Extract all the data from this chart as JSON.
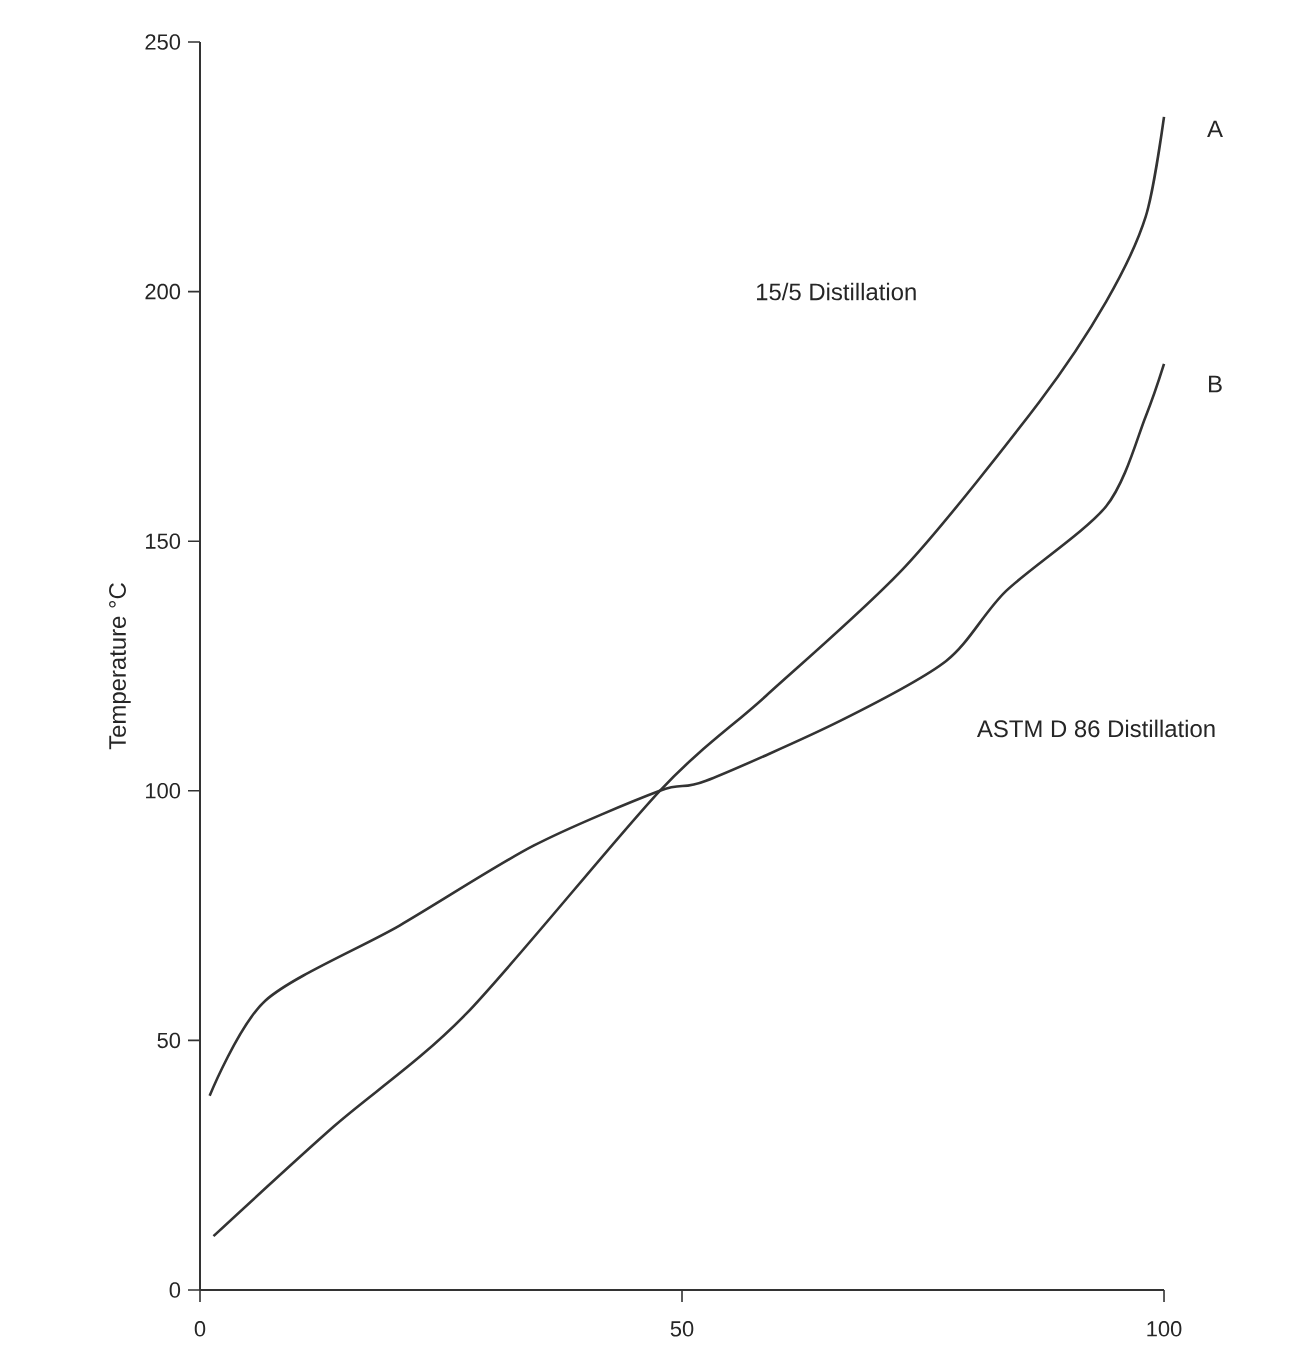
{
  "chart_data": {
    "type": "line",
    "ylabel": "Temperature °C",
    "xlim": [
      0,
      100
    ],
    "ylim": [
      0,
      250
    ],
    "xticks": [
      0,
      50,
      100
    ],
    "yticks": [
      0,
      50,
      100,
      150,
      200,
      250
    ],
    "grid": false,
    "legend": false,
    "marker": "none",
    "line_style": "solid",
    "series": [
      {
        "name": "A",
        "color": "#333333",
        "x": [
          1.4,
          13.9,
          27.6,
          47.7,
          58.7,
          73.2,
          87.1,
          94,
          98.1,
          100
        ],
        "values": [
          10.8,
          32.8,
          55.3,
          100,
          119,
          145,
          178,
          198,
          215,
          235
        ]
      },
      {
        "name": "B",
        "color": "#333333",
        "x": [
          1,
          6.8,
          20.7,
          34.6,
          47.7,
          52.5,
          66.4,
          77.4,
          83.6,
          94,
          98.1,
          100
        ],
        "values": [
          38.9,
          58,
          73,
          89,
          100,
          102,
          114,
          126,
          140,
          157,
          175,
          185.5
        ]
      }
    ],
    "annotations": [
      "15/5 Distillation",
      "ASTM D 86 Distillation"
    ]
  }
}
